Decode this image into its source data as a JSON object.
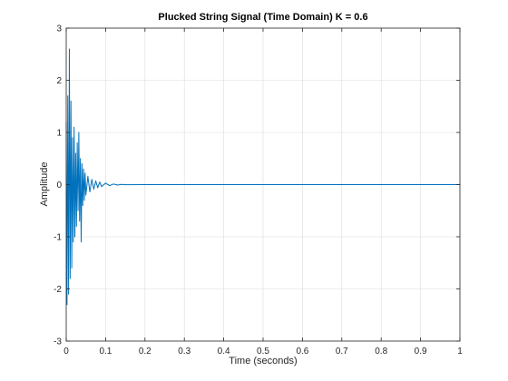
{
  "chart_data": {
    "type": "line",
    "title": "Plucked String Signal (Time Domain) K = 0.6",
    "xlabel": "Time (seconds)",
    "ylabel": "Amplitude",
    "xlim": [
      0,
      1
    ],
    "ylim": [
      -3,
      3
    ],
    "xticks": [
      "0",
      "0.1",
      "0.2",
      "0.3",
      "0.4",
      "0.5",
      "0.6",
      "0.7",
      "0.8",
      "0.9",
      "1"
    ],
    "yticks": [
      "-3",
      "-2",
      "-1",
      "0",
      "1",
      "2",
      "3"
    ],
    "grid": true,
    "line_color": "#0072BD",
    "series": [
      {
        "x": [
          0,
          0.002,
          0.004,
          0.006,
          0.008,
          0.01,
          0.012,
          0.014,
          0.016,
          0.018,
          0.02,
          0.022,
          0.024,
          0.026,
          0.028,
          0.03,
          0.032,
          0.034,
          0.036,
          0.038,
          0.04,
          0.042,
          0.044,
          0.046,
          0.048,
          0.05,
          0.055,
          0.06,
          0.065,
          0.07,
          0.075,
          0.08,
          0.085,
          0.09,
          0.1,
          0.11,
          0.12,
          0.13,
          0.14,
          0.15,
          0.2,
          0.3,
          0.5,
          0.7,
          1.0
        ],
        "y": [
          1.2,
          -2.3,
          1.7,
          -2.1,
          2.6,
          -1.8,
          1.6,
          -1.6,
          0.9,
          -1.1,
          1.1,
          -1.0,
          0.6,
          -0.8,
          0.8,
          -0.5,
          1.0,
          -0.7,
          0.5,
          -1.1,
          0.4,
          -0.4,
          0.3,
          -0.3,
          0.22,
          -0.2,
          0.16,
          -0.14,
          0.1,
          -0.09,
          0.07,
          -0.06,
          0.05,
          -0.04,
          0.03,
          -0.02,
          0.012,
          -0.008,
          0.004,
          -0.002,
          0.0,
          0.0,
          0.0,
          0.0,
          0.0
        ]
      }
    ]
  }
}
